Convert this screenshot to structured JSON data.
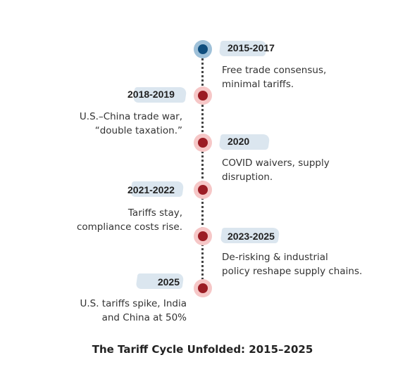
{
  "colors": {
    "first_node_halo": "#9fc1d9",
    "first_node_core": "#0e4d7d",
    "node_halo": "#f6c7c7",
    "node_core": "#9b1c24",
    "label_highlight": "#dbe6ef",
    "connector": "#444444"
  },
  "events": [
    {
      "year": "2015-2017",
      "desc": [
        "Free trade consensus,",
        "minimal tariffs."
      ]
    },
    {
      "year": "2018-2019",
      "desc": [
        "U.S.–China trade war,",
        "“double taxation.”"
      ]
    },
    {
      "year": "2020",
      "desc": [
        "COVID waivers, supply",
        "disruption."
      ]
    },
    {
      "year": "2021-2022",
      "desc": [
        "Tariffs stay,",
        "compliance costs rise."
      ]
    },
    {
      "year": "2023-2025",
      "desc": [
        "De-risking & industrial",
        "policy reshape supply chains."
      ]
    },
    {
      "year": "2025",
      "desc": [
        "U.S. tariffs spike, India",
        "and China at 50%"
      ]
    }
  ],
  "title": "The Tariff Cycle Unfolded: 2015–2025"
}
